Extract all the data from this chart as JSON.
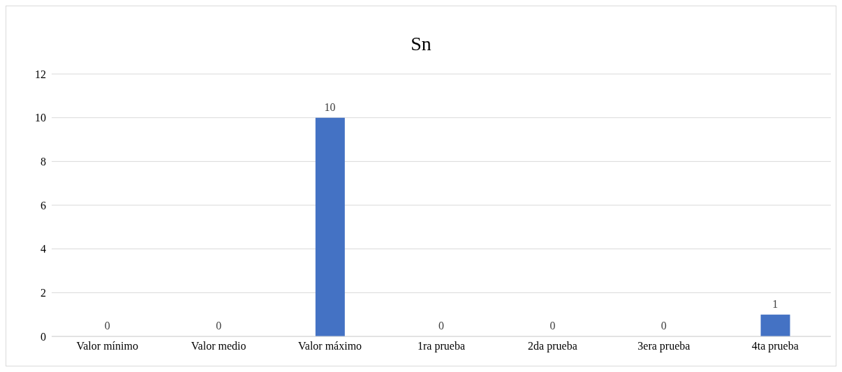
{
  "chart_data": {
    "type": "bar",
    "title": "Sn",
    "categories": [
      "Valor mínimo",
      "Valor medio",
      "Valor máximo",
      "1ra prueba",
      "2da prueba",
      "3era prueba",
      "4ta prueba"
    ],
    "values": [
      0,
      0,
      10,
      0,
      0,
      0,
      1
    ],
    "color": "#4472c4",
    "ylim": [
      0,
      12
    ],
    "yticks": [
      0,
      2,
      4,
      6,
      8,
      10,
      12
    ],
    "grid": "y",
    "data_labels": true
  }
}
